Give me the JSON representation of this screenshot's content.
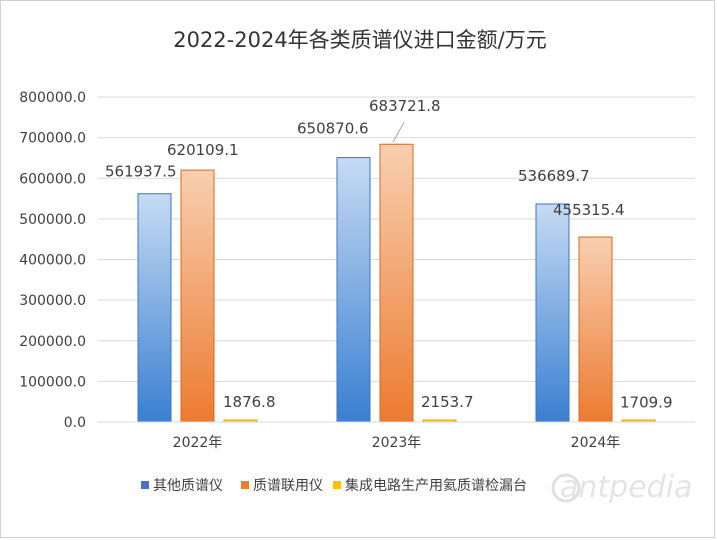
{
  "chart_data": {
    "type": "bar",
    "title": "2022-2024年各类质谱仪进口金额/万元",
    "categories": [
      "2022年",
      "2023年",
      "2024年"
    ],
    "series": [
      {
        "name": "其他质谱仪",
        "values": [
          561937.5,
          650870.6,
          536689.7
        ],
        "labels": [
          "561937.5",
          "650870.6",
          "536689.7"
        ],
        "color": "#5b9bd5"
      },
      {
        "name": "质谱联用仪",
        "values": [
          620109.1,
          683721.8,
          455315.4
        ],
        "labels": [
          "620109.1",
          "683721.8",
          "455315.4"
        ],
        "color": "#ed7d31"
      },
      {
        "name": "集成电路生产用氦质谱检漏台",
        "values": [
          1876.8,
          2153.7,
          1709.9
        ],
        "labels": [
          "1876.8",
          "2153.7",
          "1709.9"
        ],
        "color": "#ffc000"
      }
    ],
    "ylim": [
      0,
      800000
    ],
    "yticks": [
      "0.0",
      "100000.0",
      "200000.0",
      "300000.0",
      "400000.0",
      "500000.0",
      "600000.0",
      "700000.0",
      "800000.0"
    ],
    "grid": true,
    "legend_position": "bottom"
  },
  "watermark": "antpedia"
}
